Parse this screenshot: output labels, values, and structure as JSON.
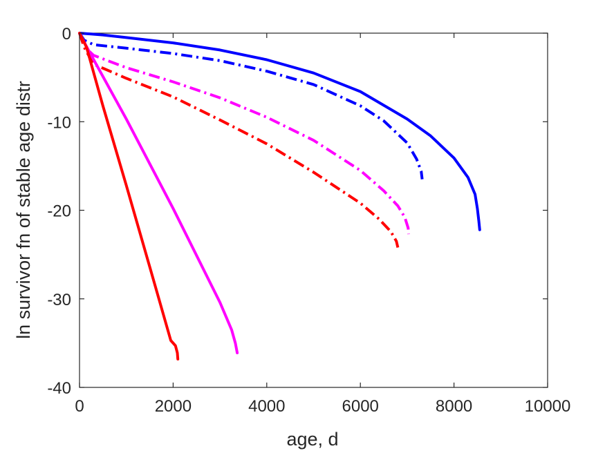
{
  "chart_data": {
    "type": "line",
    "title": "",
    "xlabel": "age, d",
    "ylabel": "ln survivor fn of stable age distr",
    "xlim": [
      0,
      10000
    ],
    "ylim": [
      -40,
      0
    ],
    "xticks": [
      0,
      2000,
      4000,
      6000,
      8000,
      10000
    ],
    "yticks": [
      0,
      -10,
      -20,
      -30,
      -40
    ],
    "xtick_labels": [
      "0",
      "2000",
      "4000",
      "6000",
      "8000",
      "10000"
    ],
    "ytick_labels": [
      "0",
      "-10",
      "-20",
      "-30",
      "-40"
    ],
    "grid": false,
    "legend": "none",
    "series": [
      {
        "color": "#0000ff",
        "style": "solid",
        "x": [
          0,
          500,
          1000,
          2000,
          3000,
          4000,
          5000,
          6000,
          7000,
          7500,
          8000,
          8300,
          8450,
          8500,
          8530,
          8550
        ],
        "y": [
          0,
          -0.2,
          -0.5,
          -1.1,
          -1.9,
          -3.0,
          -4.5,
          -6.6,
          -9.7,
          -11.6,
          -14.1,
          -16.3,
          -18.2,
          -19.8,
          -21.2,
          -22.2
        ]
      },
      {
        "color": "#0000ff",
        "style": "dashdot",
        "x": [
          0,
          100,
          300,
          1000,
          2000,
          3000,
          4000,
          5000,
          6000,
          6500,
          7000,
          7200,
          7300,
          7320
        ],
        "y": [
          0,
          -0.8,
          -1.3,
          -1.7,
          -2.3,
          -3.1,
          -4.3,
          -5.8,
          -8.2,
          -9.9,
          -12.4,
          -14.2,
          -15.6,
          -16.5
        ]
      },
      {
        "color": "#ff00ff",
        "style": "dashdot",
        "x": [
          0,
          100,
          300,
          1000,
          2000,
          3000,
          4000,
          5000,
          6000,
          6500,
          6800,
          6950,
          7020,
          7030
        ],
        "y": [
          0,
          -1.5,
          -2.5,
          -3.9,
          -5.5,
          -7.3,
          -9.5,
          -12.1,
          -15.5,
          -17.8,
          -19.5,
          -20.8,
          -22.0,
          -22.7
        ]
      },
      {
        "color": "#ff0000",
        "style": "dashdot",
        "x": [
          0,
          100,
          300,
          1000,
          2000,
          3000,
          4000,
          5000,
          6000,
          6400,
          6650,
          6770,
          6800
        ],
        "y": [
          0,
          -1.6,
          -3.5,
          -5.1,
          -7.2,
          -9.8,
          -12.5,
          -15.7,
          -19.2,
          -21.0,
          -22.4,
          -23.5,
          -24.2
        ]
      },
      {
        "color": "#ff00ff",
        "style": "solid",
        "x": [
          0,
          200,
          1000,
          2000,
          3000,
          3250,
          3330,
          3370
        ],
        "y": [
          0,
          -2.0,
          -9.7,
          -19.8,
          -30.4,
          -33.5,
          -35.0,
          -36.1
        ]
      },
      {
        "color": "#ff0000",
        "style": "solid",
        "x": [
          0,
          150,
          500,
          1000,
          1500,
          1950,
          2050,
          2090,
          2100
        ],
        "y": [
          0,
          -1.6,
          -8.2,
          -17.2,
          -26.4,
          -34.7,
          -35.3,
          -36.1,
          -36.8
        ]
      }
    ]
  }
}
